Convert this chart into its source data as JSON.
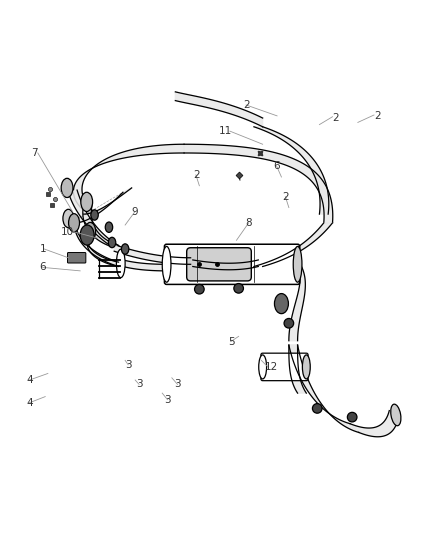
{
  "background_color": "#ffffff",
  "line_color": "#000000",
  "fill_light": "#e8e8e8",
  "fill_dark": "#555555",
  "label_color": "#333333",
  "leader_color": "#999999"
}
